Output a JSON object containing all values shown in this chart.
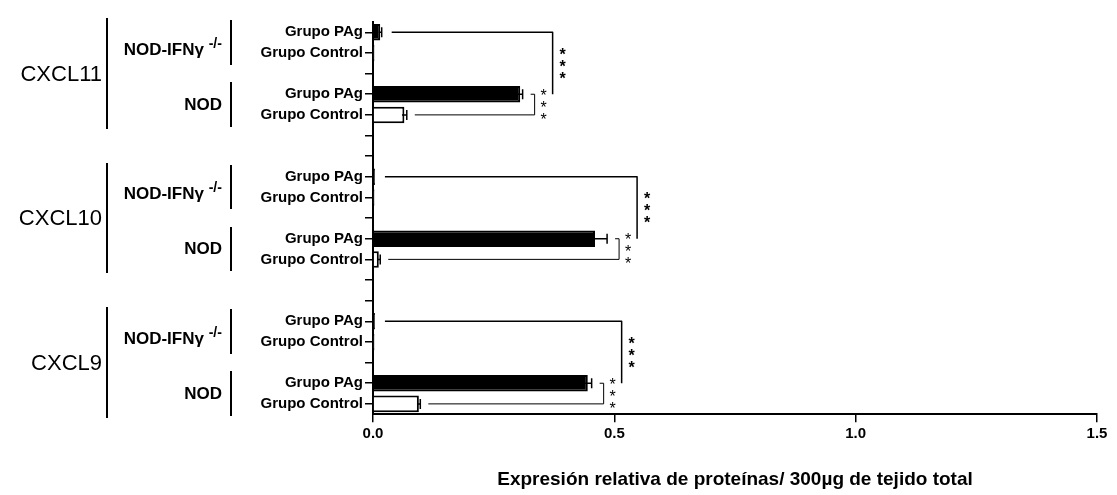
{
  "chart_data": {
    "type": "bar",
    "orientation": "horizontal",
    "xlabel": "Expresión relativa de proteínas/ 300µg de tejido total",
    "categories": [
      "Grupo PAg",
      "Grupo Control",
      null,
      "Grupo PAg",
      "Grupo Control",
      null,
      null,
      "Grupo PAg",
      "Grupo Control",
      null,
      "Grupo PAg",
      "Grupo Control",
      null,
      null,
      "Grupo PAg",
      "Grupo Control",
      null,
      "Grupo PAg",
      "Grupo Control"
    ],
    "values": [
      0.015,
      0.003,
      null,
      0.305,
      0.065,
      null,
      null,
      0.004,
      0.003,
      null,
      0.46,
      0.012,
      null,
      null,
      0.004,
      0.003,
      null,
      0.445,
      0.095
    ],
    "errors": [
      0.003,
      null,
      null,
      0.005,
      0.005,
      null,
      null,
      null,
      null,
      null,
      0.025,
      0.003,
      null,
      null,
      null,
      null,
      null,
      0.008,
      0.003
    ],
    "colors": [
      "#000000",
      "#ffffff",
      null,
      "#000000",
      "#ffffff",
      null,
      null,
      "#000000",
      "#ffffff",
      null,
      "#000000",
      "#ffffff",
      null,
      null,
      "#000000",
      "#ffffff",
      null,
      "#000000",
      "#ffffff"
    ],
    "xlim": [
      0,
      1.5
    ],
    "xticks": [
      {
        "value": 0,
        "label": "0.0"
      },
      {
        "value": 0.5,
        "label": "0.5"
      },
      {
        "value": 1,
        "label": "1.0"
      },
      {
        "value": 1.5,
        "label": "1.5"
      }
    ],
    "annotations": [
      "CXCL11",
      "NOD-IFNγ $^{-/-}$",
      "NOD",
      "***",
      "***",
      "CXCL10",
      "NOD-IFNγ $^{-/-}$",
      "NOD",
      "***",
      "***",
      "CXCL9",
      "NOD-IFNγ $^{-/-}$",
      "NOD",
      "***",
      "***"
    ],
    "grid": false,
    "legend": false
  }
}
